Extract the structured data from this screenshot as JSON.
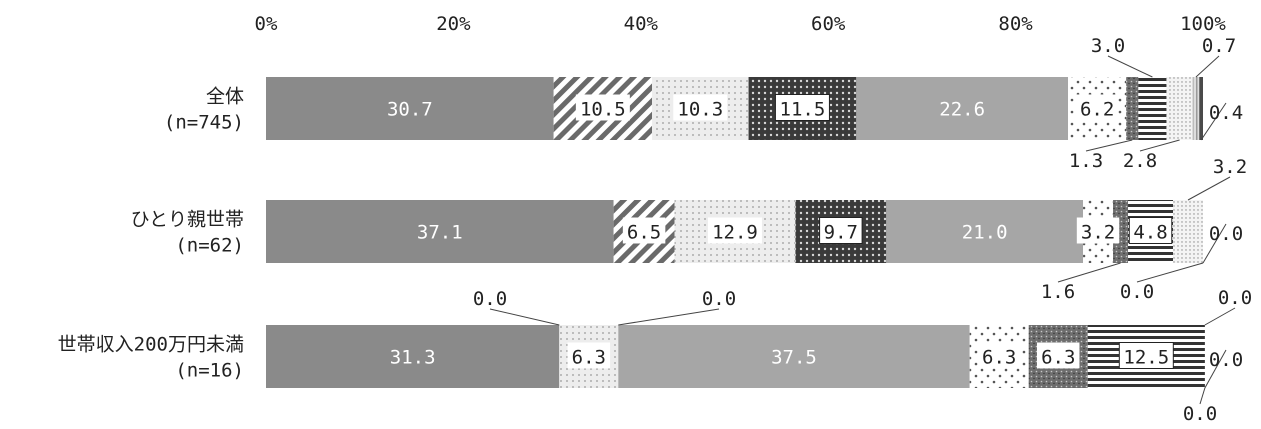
{
  "chart_data": {
    "type": "bar",
    "orientation": "horizontal",
    "stacked": true,
    "x_ticks": [
      "0%",
      "20%",
      "40%",
      "60%",
      "80%",
      "100%"
    ],
    "xlim": [
      0,
      100
    ],
    "categories": [
      [
        "全体",
        "(n=745)"
      ],
      [
        "ひとり親世帯",
        "(n=62)"
      ],
      [
        "世帯収入200万円未満",
        "(n=16)"
      ]
    ],
    "series": [
      {
        "color": "#8a8a8a",
        "pattern": "solid-dark",
        "values": [
          30.7,
          37.1,
          31.3
        ],
        "labels": [
          "30.7",
          "37.1",
          "31.3"
        ]
      },
      {
        "color": "#ffffff",
        "pattern": "diagonal-stripes",
        "values": [
          10.5,
          6.5,
          0.0
        ],
        "labels": [
          "10.5",
          "6.5",
          "0.0"
        ]
      },
      {
        "color": "#ededed",
        "pattern": "light-dots",
        "values": [
          10.3,
          12.9,
          6.3
        ],
        "labels": [
          "10.3",
          "12.9",
          "6.3"
        ]
      },
      {
        "color": "#444444",
        "pattern": "dark-dots",
        "values": [
          11.5,
          9.7,
          0.0
        ],
        "labels": [
          "11.5",
          "9.7",
          "0.0"
        ]
      },
      {
        "color": "#a6a6a6",
        "pattern": "solid-mid",
        "values": [
          22.6,
          21.0,
          37.5
        ],
        "labels": [
          "22.6",
          "21.0",
          "37.5"
        ]
      },
      {
        "color": "#ffffff",
        "pattern": "sparse-dots",
        "values": [
          6.2,
          3.2,
          6.3
        ],
        "labels": [
          "6.2",
          "3.2",
          "6.3"
        ]
      },
      {
        "color": "#7a7a7a",
        "pattern": "speckle",
        "values": [
          1.3,
          1.6,
          6.3
        ],
        "labels": [
          "1.3",
          "1.6",
          "6.3"
        ]
      },
      {
        "color": "#333333",
        "pattern": "horizontal-lines",
        "values": [
          3.0,
          4.8,
          12.5
        ],
        "labels": [
          "3.0",
          "4.8",
          "12.5"
        ]
      },
      {
        "color": "#f2f2f2",
        "pattern": "fine-dots",
        "values": [
          2.8,
          3.2,
          0.0
        ],
        "labels": [
          "2.8",
          "3.2",
          "0.0"
        ]
      },
      {
        "color": "#cccccc",
        "pattern": "light-vertical",
        "values": [
          0.7,
          0.0,
          0.0
        ],
        "labels": [
          "0.7",
          "0.0",
          "0.0"
        ]
      },
      {
        "color": "#555555",
        "pattern": "solid-black",
        "values": [
          0.4,
          0.0,
          0.0
        ],
        "labels": [
          "0.4",
          "0.0",
          "0.0"
        ]
      }
    ]
  }
}
